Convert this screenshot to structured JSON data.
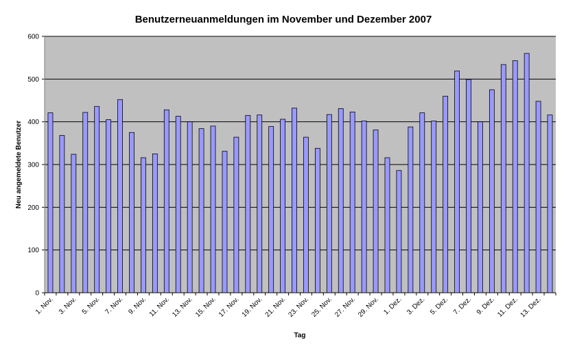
{
  "chart_data": {
    "type": "bar",
    "title": "Benutzerneuanmeldungen im November und Dezember 2007",
    "x_label": "Tag",
    "y_label": "Neu angemeldete Benutzer",
    "categories": [
      "1. Nov.",
      null,
      "3. Nov.",
      null,
      "5. Nov.",
      null,
      "7. Nov.",
      null,
      "9. Nov.",
      null,
      "11. Nov.",
      null,
      "13. Nov.",
      null,
      "15. Nov.",
      null,
      "17. Nov.",
      null,
      "19. Nov.",
      null,
      "21. Nov.",
      null,
      "23. Nov.",
      null,
      "25. Nov.",
      null,
      "27. Nov.",
      null,
      "29. Nov.",
      null,
      "1. Dez.",
      null,
      "3. Dez.",
      null,
      "5. Dez.",
      null,
      "7. Dez.",
      null,
      "9. Dez.",
      null,
      "11. Dez.",
      null,
      "13. Dez.",
      null
    ],
    "values": [
      421,
      368,
      324,
      422,
      436,
      405,
      452,
      375,
      316,
      325,
      428,
      413,
      400,
      384,
      390,
      331,
      364,
      415,
      416,
      389,
      406,
      432,
      364,
      338,
      417,
      431,
      423,
      402,
      381,
      316,
      286,
      388,
      421,
      402,
      460,
      519,
      499,
      400,
      475,
      534,
      543,
      560,
      448,
      416
    ],
    "color": "#9999ff",
    "ylim": [
      0,
      600
    ],
    "yticks": [
      0,
      100,
      200,
      300,
      400,
      500,
      600
    ],
    "grid": true
  }
}
